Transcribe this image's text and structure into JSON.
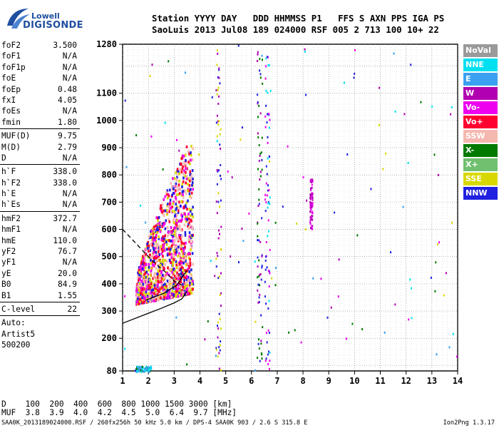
{
  "brand": {
    "line1": "Lowell",
    "line2": "DIGISONDE"
  },
  "header": {
    "line1": "Station YYYY DAY   DDD HHMMSS P1   FFS S AXN PPS IGA PS",
    "line2": "SaoLuis 2013 Jul08 189 024000 RSF 005 2 713 100 10+ 22"
  },
  "parameters": {
    "group1": [
      {
        "label": "foF2",
        "value": "3.500"
      },
      {
        "label": "foF1",
        "value": "N/A"
      },
      {
        "label": "foF1p",
        "value": "N/A"
      },
      {
        "label": "foE",
        "value": "N/A"
      },
      {
        "label": "foEp",
        "value": "0.48"
      },
      {
        "label": "fxI",
        "value": "4.05"
      },
      {
        "label": "foEs",
        "value": "N/A"
      },
      {
        "label": "fmin",
        "value": "1.80"
      }
    ],
    "group2": [
      {
        "label": "MUF(D)",
        "value": "9.75"
      },
      {
        "label": "M(D)",
        "value": "2.79"
      },
      {
        "label": "D",
        "value": "N/A"
      }
    ],
    "group3": [
      {
        "label": "h`F",
        "value": "338.0"
      },
      {
        "label": "h`F2",
        "value": "338.0"
      },
      {
        "label": "h`E",
        "value": "N/A"
      },
      {
        "label": "h`Es",
        "value": "N/A"
      }
    ],
    "group4": [
      {
        "label": "hmF2",
        "value": "372.7"
      },
      {
        "label": "hmF1",
        "value": "N/A"
      },
      {
        "label": "hmE",
        "value": "110.0"
      },
      {
        "label": "yF2",
        "value": "76.7"
      },
      {
        "label": "yF1",
        "value": "N/A"
      },
      {
        "label": "yE",
        "value": "20.0"
      },
      {
        "label": "B0",
        "value": "84.9"
      },
      {
        "label": "B1",
        "value": "1.55"
      }
    ],
    "group5": [
      {
        "label": "C-level",
        "value": "22"
      }
    ],
    "auto": [
      "Auto:",
      "Artist5",
      "500200"
    ]
  },
  "legend": [
    {
      "name": "NoVal",
      "color": "#9a9a9a"
    },
    {
      "name": "NNE",
      "color": "#00e0f0"
    },
    {
      "name": "E",
      "color": "#3aa0f0"
    },
    {
      "name": "W",
      "color": "#b000b0"
    },
    {
      "name": "Vo-",
      "color": "#ee00ee"
    },
    {
      "name": "Vo+",
      "color": "#ff0030"
    },
    {
      "name": "SSW",
      "color": "#f5b8b0"
    },
    {
      "name": "X-",
      "color": "#007a00"
    },
    {
      "name": "X+",
      "color": "#70c070"
    },
    {
      "name": "SSE",
      "color": "#d8d800"
    },
    {
      "name": "NNW",
      "color": "#2020e0"
    }
  ],
  "dmuf": {
    "line1": "D    100  200  400  600  800 1000 1500 3000 [km]",
    "line2": "MUF  3.8  3.9  4.0  4.2  4.5  5.0  6.4  9.7 [MHz]"
  },
  "footer": {
    "text": "SAA0K_2013189024000.RSF / 260fx256h 50 kHz 5.0 km / DPS-4 SAA0K 903 / 2.6 S 315.8 E",
    "version": "Ion2Png 1.3.17"
  },
  "chart_data": {
    "type": "scatter",
    "xlabel": "",
    "ylabel": "",
    "xlim": [
      1,
      14
    ],
    "ylim": [
      80,
      1280
    ],
    "xticks": [
      1,
      2,
      3,
      4,
      5,
      6,
      7,
      8,
      9,
      10,
      11,
      12,
      13,
      14
    ],
    "yticks": [
      80,
      200,
      300,
      400,
      500,
      600,
      700,
      800,
      900,
      1000,
      1100,
      1280
    ],
    "grid": true,
    "legend_placement": "right",
    "echo_clusters": [
      {
        "name": "main-F-trace",
        "x_range": [
          1.5,
          3.7
        ],
        "y_range": [
          330,
          960
        ],
        "dominant": [
          "Vo+",
          "Vo-",
          "SSE",
          "NNW",
          "SSW"
        ]
      },
      {
        "name": "low-echo-1",
        "x_range": [
          1.5,
          2.1
        ],
        "y_range": [
          80,
          100
        ],
        "dominant": [
          "NNE",
          "E",
          "X-"
        ]
      },
      {
        "name": "column-4.7",
        "x_range": [
          4.6,
          4.8
        ],
        "y_range": [
          80,
          1280
        ],
        "dominant": [
          "NNW",
          "W",
          "SSE"
        ]
      },
      {
        "name": "column-6.3",
        "x_range": [
          6.2,
          6.4
        ],
        "y_range": [
          80,
          1280
        ],
        "dominant": [
          "NNW",
          "W",
          "X-"
        ]
      },
      {
        "name": "column-6.6",
        "x_range": [
          6.5,
          6.7
        ],
        "y_range": [
          80,
          1280
        ],
        "dominant": [
          "NNE",
          "NNW",
          "Vo-"
        ]
      },
      {
        "name": "column-8.3",
        "x_range": [
          8.25,
          8.35
        ],
        "y_range": [
          600,
          800
        ],
        "dominant": [
          "W",
          "Vo-"
        ]
      }
    ],
    "profile_curves": [
      {
        "name": "O-trace-fit",
        "style": "solid",
        "points": [
          [
            1,
            255
          ],
          [
            2,
            292
          ],
          [
            2.5,
            310
          ],
          [
            3,
            330
          ],
          [
            3.3,
            345
          ],
          [
            3.5,
            372.7
          ]
        ]
      },
      {
        "name": "X-trace-fit",
        "style": "solid",
        "points": [
          [
            1.9,
            340
          ],
          [
            2.6,
            365
          ],
          [
            3.1,
            395
          ],
          [
            3.5,
            450
          ]
        ]
      },
      {
        "name": "topside-profile",
        "style": "dashed",
        "points": [
          [
            1,
            600
          ],
          [
            1.6,
            540
          ],
          [
            2.2,
            480
          ],
          [
            2.7,
            440
          ],
          [
            3.0,
            410
          ],
          [
            3.3,
            395
          ]
        ]
      }
    ]
  }
}
